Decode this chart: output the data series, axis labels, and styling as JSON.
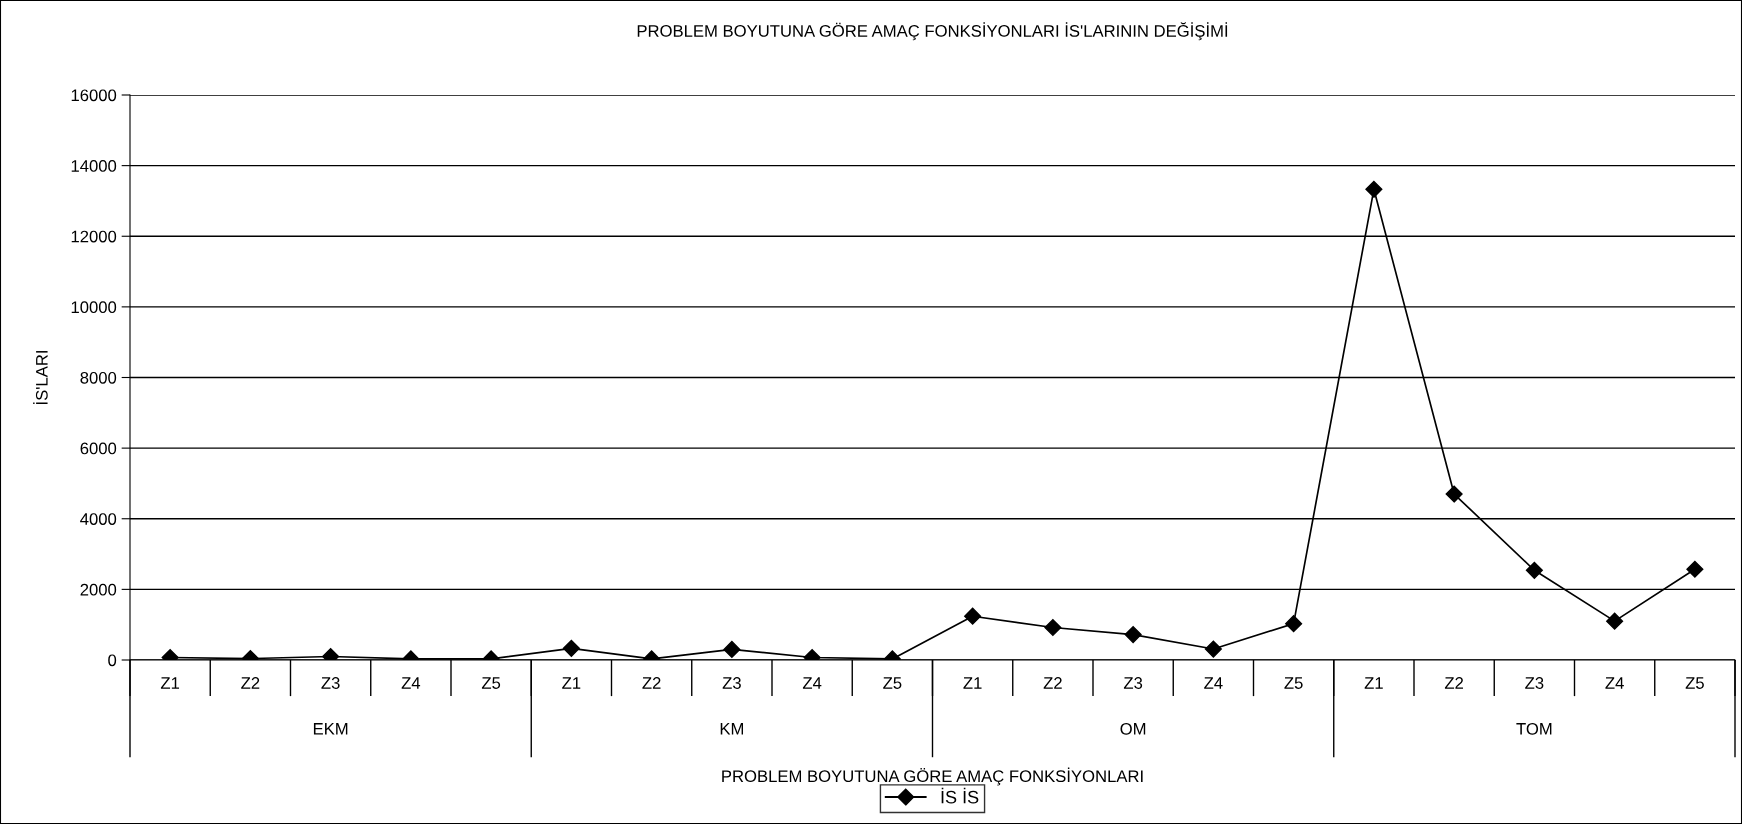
{
  "chart_data": {
    "type": "line",
    "title": "PROBLEM BOYUTUNA GÖRE AMAÇ FONKSİYONLARI İS'LARININ DEĞİŞİMİ",
    "xlabel": "PROBLEM BOYUTUNA GÖRE AMAÇ FONKSİYONLARI",
    "ylabel": "İS'LARI",
    "categories": [
      "Z1",
      "Z2",
      "Z3",
      "Z4",
      "Z5",
      "Z1",
      "Z2",
      "Z3",
      "Z4",
      "Z5",
      "Z1",
      "Z2",
      "Z3",
      "Z4",
      "Z5",
      "Z1",
      "Z2",
      "Z3",
      "Z4",
      "Z5"
    ],
    "annotations": [
      "EKM",
      "KM",
      "OM",
      "TOM"
    ],
    "series": [
      {
        "name": "İS İS",
        "color": "#000000",
        "values": [
          70,
          40,
          100,
          30,
          30,
          330,
          30,
          300,
          70,
          30,
          1240,
          920,
          720,
          310,
          1030,
          13330,
          4700,
          2540,
          1100,
          2570
        ]
      }
    ],
    "ylim": [
      0,
      16000
    ],
    "yticks": [
      0,
      2000,
      4000,
      6000,
      8000,
      10000,
      12000,
      14000,
      16000
    ],
    "grid": "y",
    "legend": "bottom",
    "marker": "diamond",
    "line_style": "solid"
  }
}
